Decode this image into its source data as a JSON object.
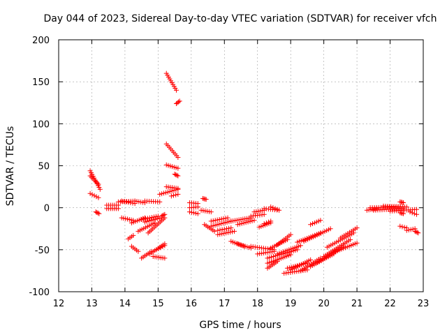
{
  "chart_data": {
    "type": "scatter",
    "title": "Day 044 of 2023, Sidereal Day-to-day VTEC variation (SDTVAR) for receiver vfch",
    "xlabel": "GPS time / hours",
    "ylabel": "SDTVAR / TECUs",
    "xlim": [
      12,
      23
    ],
    "ylim": [
      -100,
      200
    ],
    "xticks": [
      "12",
      "13",
      "14",
      "15",
      "16",
      "17",
      "18",
      "19",
      "20",
      "21",
      "22",
      "23"
    ],
    "yticks": [
      "-100",
      "-50",
      "0",
      "50",
      "100",
      "150",
      "200"
    ],
    "grid": true,
    "marker": "+",
    "color": "#ff0000",
    "segments": [
      {
        "x": [
          12.95,
          13.25
        ],
        "y": [
          44,
          22
        ]
      },
      {
        "x": [
          12.95,
          13.2
        ],
        "y": [
          38,
          28
        ]
      },
      {
        "x": [
          12.95,
          13.2
        ],
        "y": [
          17,
          12
        ]
      },
      {
        "x": [
          13.12,
          13.22
        ],
        "y": [
          -5,
          -7
        ]
      },
      {
        "x": [
          13.45,
          13.8
        ],
        "y": [
          3,
          3
        ]
      },
      {
        "x": [
          13.45,
          13.8
        ],
        "y": [
          -1,
          -1
        ]
      },
      {
        "x": [
          13.8,
          14.3
        ],
        "y": [
          7,
          8
        ]
      },
      {
        "x": [
          13.9,
          14.3
        ],
        "y": [
          8,
          5
        ]
      },
      {
        "x": [
          14.3,
          14.6
        ],
        "y": [
          8,
          6
        ]
      },
      {
        "x": [
          14.6,
          15.05
        ],
        "y": [
          8,
          7
        ]
      },
      {
        "x": [
          13.9,
          14.25
        ],
        "y": [
          -12,
          -15
        ]
      },
      {
        "x": [
          14.2,
          14.6
        ],
        "y": [
          -18,
          -12
        ]
      },
      {
        "x": [
          14.5,
          15.0
        ],
        "y": [
          -14,
          -10
        ]
      },
      {
        "x": [
          14.6,
          15.1
        ],
        "y": [
          -17,
          -12
        ]
      },
      {
        "x": [
          14.4,
          14.9
        ],
        "y": [
          -28,
          -18
        ]
      },
      {
        "x": [
          14.7,
          15.2
        ],
        "y": [
          -30,
          -12
        ]
      },
      {
        "x": [
          14.1,
          14.25
        ],
        "y": [
          -37,
          -33
        ]
      },
      {
        "x": [
          14.2,
          14.4
        ],
        "y": [
          -46,
          -52
        ]
      },
      {
        "x": [
          14.5,
          14.8
        ],
        "y": [
          -60,
          -52
        ]
      },
      {
        "x": [
          14.75,
          15.2
        ],
        "y": [
          -55,
          -43
        ]
      },
      {
        "x": [
          14.95,
          15.2
        ],
        "y": [
          -50,
          -45
        ]
      },
      {
        "x": [
          14.85,
          15.2
        ],
        "y": [
          -58,
          -60
        ]
      },
      {
        "x": [
          15.1,
          15.2
        ],
        "y": [
          -10,
          -8
        ]
      },
      {
        "x": [
          15.25,
          15.55
        ],
        "y": [
          160,
          140
        ]
      },
      {
        "x": [
          15.55,
          15.65
        ],
        "y": [
          124,
          127
        ]
      },
      {
        "x": [
          15.25,
          15.6
        ],
        "y": [
          76,
          60
        ]
      },
      {
        "x": [
          15.25,
          15.6
        ],
        "y": [
          51,
          47
        ]
      },
      {
        "x": [
          15.5,
          15.6
        ],
        "y": [
          40,
          38
        ]
      },
      {
        "x": [
          15.25,
          15.6
        ],
        "y": [
          25,
          23
        ]
      },
      {
        "x": [
          15.05,
          15.6
        ],
        "y": [
          16,
          22
        ]
      },
      {
        "x": [
          15.4,
          15.6
        ],
        "y": [
          14,
          16
        ]
      },
      {
        "x": [
          15.95,
          16.2
        ],
        "y": [
          6,
          5
        ]
      },
      {
        "x": [
          15.95,
          16.2
        ],
        "y": [
          0,
          1
        ]
      },
      {
        "x": [
          15.95,
          16.2
        ],
        "y": [
          -5,
          -7
        ]
      },
      {
        "x": [
          16.35,
          16.45
        ],
        "y": [
          11,
          10
        ]
      },
      {
        "x": [
          16.3,
          16.6
        ],
        "y": [
          -3,
          -5
        ]
      },
      {
        "x": [
          16.4,
          16.7
        ],
        "y": [
          -20,
          -28
        ]
      },
      {
        "x": [
          16.6,
          17.1
        ],
        "y": [
          -16,
          -12
        ]
      },
      {
        "x": [
          16.6,
          17.2
        ],
        "y": [
          -22,
          -16
        ]
      },
      {
        "x": [
          16.8,
          17.2
        ],
        "y": [
          -27,
          -24
        ]
      },
      {
        "x": [
          16.8,
          17.3
        ],
        "y": [
          -32,
          -28
        ]
      },
      {
        "x": [
          17.2,
          17.8
        ],
        "y": [
          -16,
          -12
        ]
      },
      {
        "x": [
          17.4,
          17.9
        ],
        "y": [
          -20,
          -15
        ]
      },
      {
        "x": [
          17.9,
          18.2
        ],
        "y": [
          -5,
          -3
        ]
      },
      {
        "x": [
          18.2,
          18.65
        ],
        "y": [
          -1,
          -3
        ]
      },
      {
        "x": [
          18.4,
          18.6
        ],
        "y": [
          1,
          -2
        ]
      },
      {
        "x": [
          17.8,
          18.2
        ],
        "y": [
          -10,
          -8
        ]
      },
      {
        "x": [
          18.05,
          18.4
        ],
        "y": [
          -23,
          -18
        ]
      },
      {
        "x": [
          18.2,
          18.4
        ],
        "y": [
          -19,
          -16
        ]
      },
      {
        "x": [
          17.2,
          17.6
        ],
        "y": [
          -40,
          -46
        ]
      },
      {
        "x": [
          17.4,
          17.8
        ],
        "y": [
          -43,
          -48
        ]
      },
      {
        "x": [
          17.8,
          18.5
        ],
        "y": [
          -46,
          -50
        ]
      },
      {
        "x": [
          18.0,
          18.5
        ],
        "y": [
          -55,
          -52
        ]
      },
      {
        "x": [
          18.4,
          18.9
        ],
        "y": [
          -48,
          -38
        ]
      },
      {
        "x": [
          18.6,
          19.0
        ],
        "y": [
          -44,
          -32
        ]
      },
      {
        "x": [
          18.3,
          19.2
        ],
        "y": [
          -60,
          -50
        ]
      },
      {
        "x": [
          18.3,
          19.0
        ],
        "y": [
          -66,
          -56
        ]
      },
      {
        "x": [
          18.3,
          18.6
        ],
        "y": [
          -72,
          -64
        ]
      },
      {
        "x": [
          18.6,
          19.3
        ],
        "y": [
          -55,
          -45
        ]
      },
      {
        "x": [
          19.2,
          19.9
        ],
        "y": [
          -41,
          -30
        ]
      },
      {
        "x": [
          19.4,
          20.2
        ],
        "y": [
          -40,
          -25
        ]
      },
      {
        "x": [
          19.6,
          19.9
        ],
        "y": [
          -20,
          -15
        ]
      },
      {
        "x": [
          18.9,
          19.5
        ],
        "y": [
          -72,
          -66
        ]
      },
      {
        "x": [
          19.0,
          19.6
        ],
        "y": [
          -74,
          -62
        ]
      },
      {
        "x": [
          19.3,
          19.9
        ],
        "y": [
          -75,
          -60
        ]
      },
      {
        "x": [
          18.8,
          19.5
        ],
        "y": [
          -78,
          -74
        ]
      },
      {
        "x": [
          19.6,
          20.3
        ],
        "y": [
          -70,
          -55
        ]
      },
      {
        "x": [
          19.8,
          20.6
        ],
        "y": [
          -65,
          -46
        ]
      },
      {
        "x": [
          20.0,
          20.8
        ],
        "y": [
          -58,
          -38
        ]
      },
      {
        "x": [
          20.3,
          21.0
        ],
        "y": [
          -53,
          -42
        ]
      },
      {
        "x": [
          20.1,
          20.9
        ],
        "y": [
          -47,
          -30
        ]
      },
      {
        "x": [
          20.5,
          21.0
        ],
        "y": [
          -36,
          -24
        ]
      },
      {
        "x": [
          21.3,
          21.6
        ],
        "y": [
          -3,
          -1
        ]
      },
      {
        "x": [
          21.4,
          22.3
        ],
        "y": [
          0,
          1
        ]
      },
      {
        "x": [
          21.5,
          22.4
        ],
        "y": [
          -3,
          -1
        ]
      },
      {
        "x": [
          21.8,
          22.5
        ],
        "y": [
          2,
          1
        ]
      },
      {
        "x": [
          22.0,
          22.8
        ],
        "y": [
          -4,
          -2
        ]
      },
      {
        "x": [
          22.3,
          22.4
        ],
        "y": [
          7,
          6
        ]
      },
      {
        "x": [
          22.3,
          22.4
        ],
        "y": [
          -6,
          -7
        ]
      },
      {
        "x": [
          22.6,
          22.8
        ],
        "y": [
          -5,
          -8
        ]
      },
      {
        "x": [
          22.3,
          22.5
        ],
        "y": [
          -22,
          -24
        ]
      },
      {
        "x": [
          22.5,
          22.75
        ],
        "y": [
          -27,
          -25
        ]
      },
      {
        "x": [
          22.75,
          22.85
        ],
        "y": [
          -28,
          -30
        ]
      }
    ]
  }
}
